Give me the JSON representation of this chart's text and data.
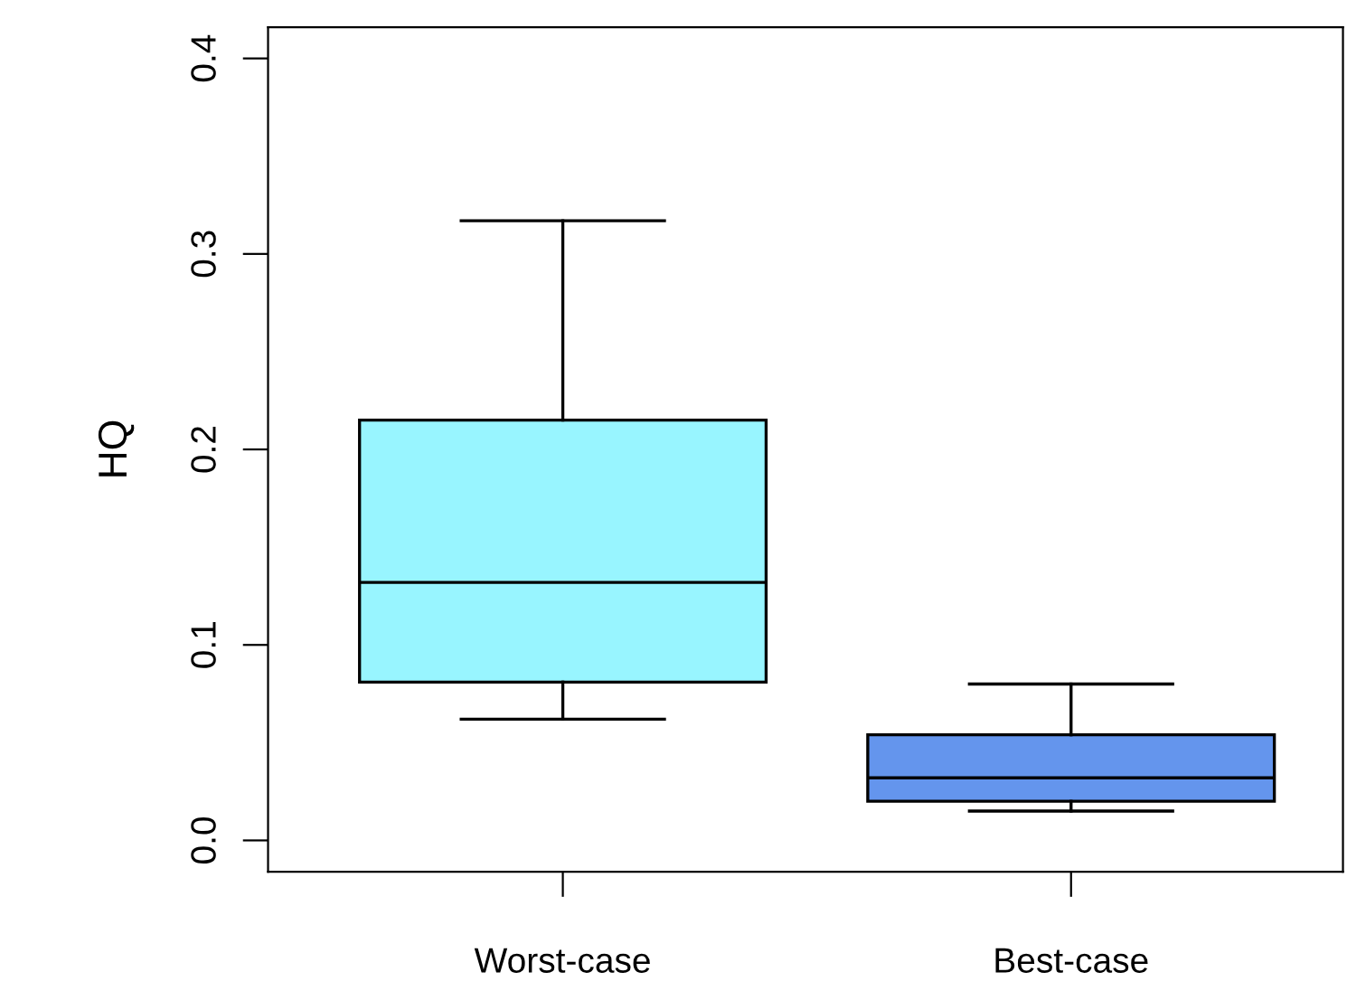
{
  "chart_data": {
    "type": "box",
    "ylabel": "HQ",
    "categories": [
      "Worst-case",
      "Best-case"
    ],
    "boxes": [
      {
        "low": 0.062,
        "q1": 0.081,
        "median": 0.132,
        "q3": 0.215,
        "high": 0.317
      },
      {
        "low": 0.015,
        "q1": 0.02,
        "median": 0.032,
        "q3": 0.054,
        "high": 0.08
      }
    ],
    "colors": [
      "#98f5ff",
      "#6495ed"
    ],
    "ylim": [
      -0.016,
      0.416
    ],
    "yticks": [
      {
        "value": 0,
        "label": "0.0"
      },
      0.1,
      0.2,
      0.3,
      0.4
    ],
    "grid": false
  }
}
